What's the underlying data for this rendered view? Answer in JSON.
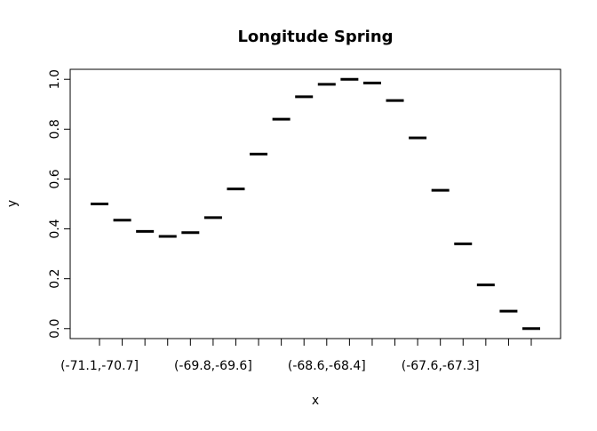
{
  "chart_data": {
    "type": "scatter",
    "title": "Longitude Spring",
    "xlabel": "x",
    "ylabel": "y",
    "ylim": [
      -0.04,
      1.04
    ],
    "grid": false,
    "categories": [
      "(-71.1,-70.7]",
      "",
      "",
      "",
      "",
      "(-69.8,-69.6]",
      "",
      "",
      "",
      "",
      "(-68.6,-68.4]",
      "",
      "",
      "",
      "",
      "(-67.6,-67.3]",
      "",
      "",
      "",
      ""
    ],
    "values": [
      0.5,
      0.435,
      0.39,
      0.37,
      0.385,
      0.445,
      0.56,
      0.7,
      0.84,
      0.93,
      0.98,
      1.0,
      0.985,
      0.915,
      0.765,
      0.555,
      0.34,
      0.175,
      0.07,
      0.0
    ],
    "y_ticks": [
      "0.0",
      "0.2",
      "0.4",
      "0.6",
      "0.8",
      "1.0"
    ]
  }
}
